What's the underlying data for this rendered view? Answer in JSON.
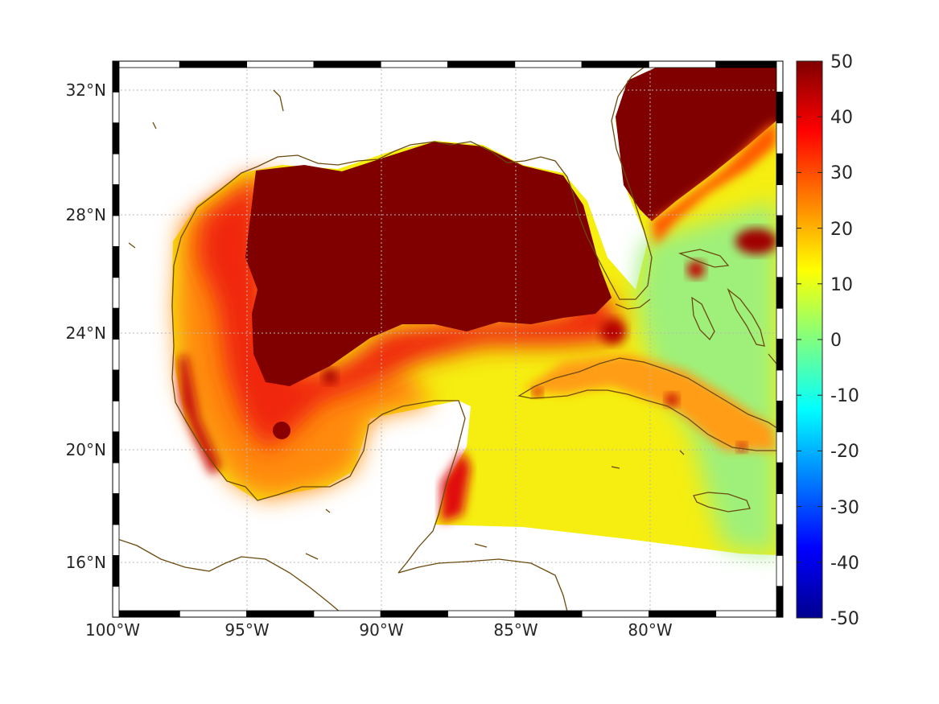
{
  "map": {
    "x_ticks": [
      "100°W",
      "95°W",
      "90°W",
      "85°W",
      "80°W"
    ],
    "y_ticks": [
      "32°N",
      "28°N",
      "24°N",
      "20°N",
      "16°N"
    ],
    "grid": "dotted",
    "frame": "black-white checkered border",
    "coastline_color": "#6b4a0e",
    "land_color": "#ffffff"
  },
  "colorbar": {
    "ticks": [
      "50",
      "40",
      "30",
      "20",
      "10",
      "0",
      "-10",
      "-20",
      "-30",
      "-40",
      "-50"
    ],
    "min": -50,
    "max": 50,
    "colormap": "jet",
    "position": "right"
  }
}
